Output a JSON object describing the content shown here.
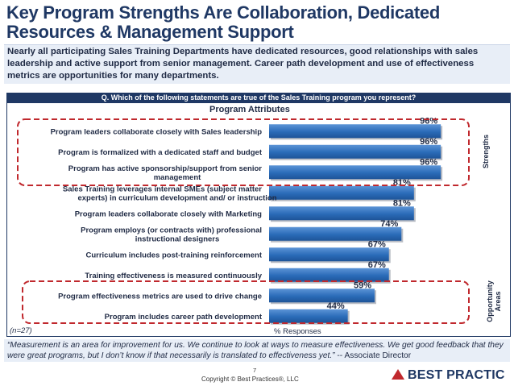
{
  "title": "Key Program Strengths Are Collaboration, Dedicated Resources & Management Support",
  "subtitle": "Nearly all participating Sales Training Departments have dedicated resources, good relationships with sales leadership and active support from senior management. Career path development and use of effectiveness metrics are opportunities for many departments.",
  "question": "Q. Which of the following statements are true of the Sales Training program you represent?",
  "side_labels": {
    "strengths": "Strengths",
    "opportunity": "Opportunity Areas"
  },
  "sample_size": "(n=27)",
  "axis_label": "% Responses",
  "quote": {
    "text": "“Measurement is an area for improvement for us. We continue to look at ways to measure effectiveness. We get good feedback that they were great programs, but I don’t know if that necessarily is translated to effectiveness yet.”",
    "attribution": " -- Associate Director"
  },
  "page_number": "7",
  "copyright": "Copyright © Best Practices®, LLC",
  "logo_text": "BEST PRACTIC",
  "colors": {
    "bar": "#2a6bb8",
    "highlight": "#c0282d",
    "navy": "#1f3864"
  },
  "chart_data": {
    "type": "bar",
    "orientation": "horizontal",
    "title": "Program Attributes",
    "xlabel": "% Responses",
    "xlim": [
      0,
      100
    ],
    "categories": [
      [
        "Program leaders collaborate closely with Sales leadership"
      ],
      [
        "Program is formalized with a dedicated staff and budget"
      ],
      [
        "Program has active sponsorship/support from senior",
        "management"
      ],
      [
        "Sales Training leverages internal SMEs (subject matter",
        "experts) in curriculum development and/ or instruction"
      ],
      [
        "Program leaders collaborate closely with Marketing"
      ],
      [
        "Program employs (or contracts with) professional",
        "instructional designers"
      ],
      [
        "Curriculum includes post-training reinforcement"
      ],
      [
        "Training effectiveness is measured continuously"
      ],
      [
        "Program effectiveness metrics are used to drive change"
      ],
      [
        "Program includes career path development"
      ]
    ],
    "values": [
      96,
      96,
      96,
      81,
      81,
      74,
      67,
      67,
      59,
      44
    ],
    "value_labels": [
      "96%",
      "96%",
      "96%",
      "81%",
      "81%",
      "74%",
      "67%",
      "67%",
      "59%",
      "44%"
    ],
    "highlight_groups": [
      "Strengths",
      "Opportunity Areas"
    ]
  }
}
